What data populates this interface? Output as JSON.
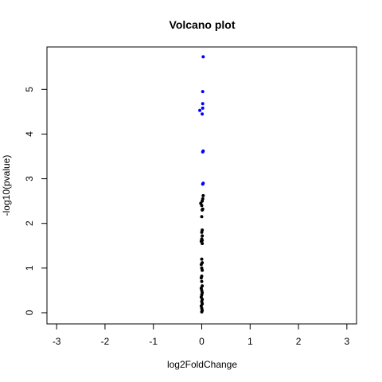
{
  "chart_data": {
    "type": "scatter",
    "title": "Volcano plot",
    "xlabel": "log2FoldChange",
    "ylabel": "-log10(pvalue)",
    "xlim": [
      -3.2,
      3.2
    ],
    "ylim": [
      -0.25,
      5.95
    ],
    "xticks": [
      -3,
      -2,
      -1,
      0,
      1,
      2,
      3
    ],
    "yticks": [
      0,
      1,
      2,
      3,
      4,
      5
    ],
    "grid": false,
    "series": [
      {
        "color": "#0000ff",
        "points": [
          {
            "x": 0.03,
            "y": 5.73
          },
          {
            "x": 0.02,
            "y": 4.95
          },
          {
            "x": 0.02,
            "y": 4.68
          },
          {
            "x": 0.02,
            "y": 4.58
          },
          {
            "x": -0.04,
            "y": 4.53
          },
          {
            "x": 0.01,
            "y": 4.45
          },
          {
            "x": 0.03,
            "y": 3.62
          },
          {
            "x": 0.02,
            "y": 3.6
          },
          {
            "x": 0.03,
            "y": 2.9
          },
          {
            "x": 0.02,
            "y": 2.88
          }
        ]
      },
      {
        "color": "#000000",
        "points": [
          {
            "x": 0.03,
            "y": 2.62
          },
          {
            "x": 0.02,
            "y": 2.55
          },
          {
            "x": 0.01,
            "y": 2.5
          },
          {
            "x": -0.02,
            "y": 2.45
          },
          {
            "x": 0.0,
            "y": 2.4
          },
          {
            "x": 0.02,
            "y": 2.32
          },
          {
            "x": 0.01,
            "y": 2.3
          },
          {
            "x": 0.0,
            "y": 2.15
          },
          {
            "x": 0.01,
            "y": 1.85
          },
          {
            "x": 0.0,
            "y": 1.8
          },
          {
            "x": 0.01,
            "y": 1.72
          },
          {
            "x": 0.0,
            "y": 1.65
          },
          {
            "x": 0.01,
            "y": 1.62
          },
          {
            "x": -0.01,
            "y": 1.6
          },
          {
            "x": 0.01,
            "y": 1.55
          },
          {
            "x": 0.0,
            "y": 1.2
          },
          {
            "x": 0.01,
            "y": 1.12
          },
          {
            "x": -0.01,
            "y": 1.08
          },
          {
            "x": 0.0,
            "y": 1.0
          },
          {
            "x": 0.01,
            "y": 0.95
          },
          {
            "x": 0.0,
            "y": 0.82
          },
          {
            "x": -0.01,
            "y": 0.78
          },
          {
            "x": 0.0,
            "y": 0.7
          },
          {
            "x": 0.01,
            "y": 0.6
          },
          {
            "x": -0.01,
            "y": 0.55
          },
          {
            "x": 0.0,
            "y": 0.5
          },
          {
            "x": 0.01,
            "y": 0.45
          },
          {
            "x": 0.0,
            "y": 0.4
          },
          {
            "x": -0.01,
            "y": 0.35
          },
          {
            "x": 0.01,
            "y": 0.3
          },
          {
            "x": 0.0,
            "y": 0.25
          },
          {
            "x": 0.01,
            "y": 0.2
          },
          {
            "x": -0.01,
            "y": 0.15
          },
          {
            "x": 0.0,
            "y": 0.1
          },
          {
            "x": 0.01,
            "y": 0.05
          },
          {
            "x": 0.0,
            "y": 0.02
          }
        ]
      }
    ]
  }
}
